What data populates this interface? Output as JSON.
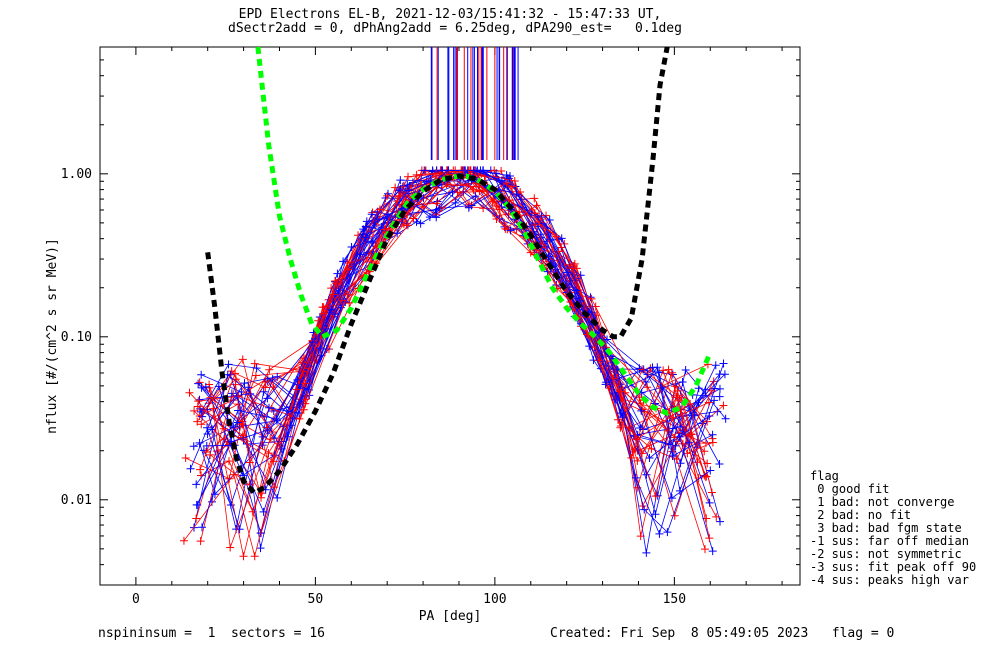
{
  "chart_data": {
    "type": "line",
    "title": "EPD Electrons EL-B, 2021-12-03/15:41:32 - 15:47:33 UT,",
    "subtitle": "dSectr2add = 0, dPhAng2add = 6.25deg, dPA290_est=   0.1deg",
    "xlabel": "PA [deg]",
    "ylabel": "nflux [#/(cm^2 s sr MeV)]",
    "xlim": [
      -10,
      185
    ],
    "ylim": [
      0.003,
      6
    ],
    "yscale": "log",
    "x_ticks": [
      0,
      50,
      100,
      150
    ],
    "x_tick_labels": [
      "0",
      "50",
      "100",
      "150"
    ],
    "y_ticks": [
      0.01,
      0.1,
      1.0
    ],
    "y_tick_labels": [
      "0.01",
      "0.10",
      "1.00"
    ],
    "series": [
      {
        "name": "fit-green",
        "color": "#00ff00",
        "x": [
          34,
          37,
          40,
          43,
          46,
          49,
          52,
          56,
          60,
          64,
          68,
          72,
          76,
          80,
          84,
          88,
          92,
          96,
          100,
          104,
          108,
          112,
          116,
          120,
          124,
          128,
          132,
          136,
          140,
          144,
          148,
          152,
          156,
          160
        ],
        "y": [
          6.0,
          1.5,
          0.55,
          0.3,
          0.18,
          0.12,
          0.1,
          0.11,
          0.15,
          0.23,
          0.35,
          0.5,
          0.68,
          0.8,
          0.9,
          0.96,
          0.97,
          0.9,
          0.78,
          0.62,
          0.45,
          0.3,
          0.2,
          0.15,
          0.12,
          0.1,
          0.08,
          0.06,
          0.045,
          0.037,
          0.034,
          0.037,
          0.05,
          0.08
        ]
      },
      {
        "name": "fit-black",
        "color": "#000000",
        "x": [
          20,
          22,
          24,
          26,
          28,
          30,
          33,
          36,
          40,
          45,
          50,
          55,
          60,
          65,
          70,
          75,
          80,
          85,
          90,
          95,
          100,
          105,
          110,
          115,
          120,
          125,
          130,
          133,
          135,
          138,
          141,
          144,
          146,
          148
        ],
        "y": [
          0.33,
          0.15,
          0.06,
          0.03,
          0.018,
          0.013,
          0.011,
          0.012,
          0.015,
          0.022,
          0.035,
          0.06,
          0.12,
          0.22,
          0.4,
          0.6,
          0.78,
          0.92,
          0.97,
          0.93,
          0.8,
          0.6,
          0.42,
          0.28,
          0.19,
          0.14,
          0.11,
          0.1,
          0.1,
          0.13,
          0.3,
          1.2,
          3.5,
          6.0
        ]
      }
    ],
    "point_colors": [
      "#ff0000",
      "#0000ff"
    ],
    "notes": "Dense bundle of red and blue per-sector pitch-angle profiles peaking near PA 90 deg at ~1.0; vertical red/blue spike lines near PA 82-107 at top of frame."
  },
  "legend": {
    "title": "flag",
    "items": [
      " 0 good fit",
      " 1 bad: not converge",
      " 2 bad: no fit",
      " 3 bad: bad fgm state",
      "-1 sus: far off median",
      "-2 sus: not symmetric",
      "-3 sus: fit peak off 90",
      "-4 sus: peaks high var"
    ]
  },
  "footer": {
    "left": "nspininsum =  1  sectors = 16",
    "right": "Created: Fri Sep  8 05:49:05 2023   flag = 0"
  }
}
